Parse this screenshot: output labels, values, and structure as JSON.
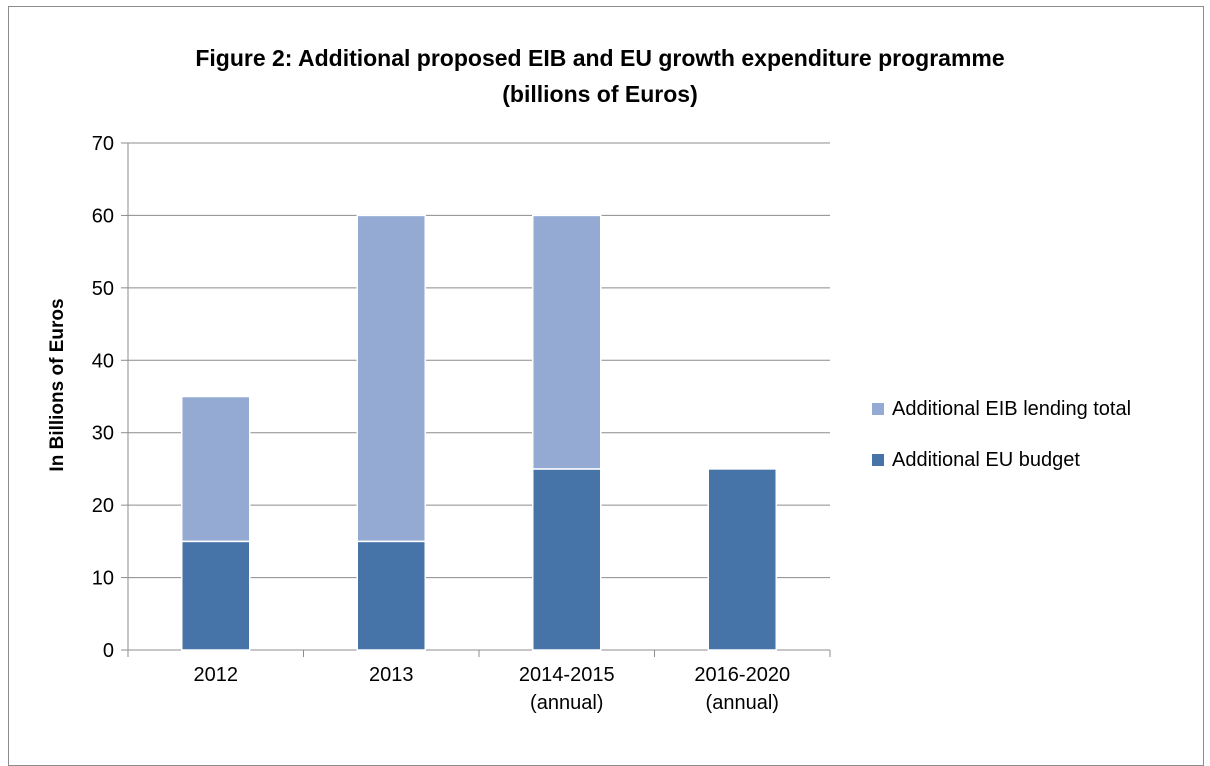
{
  "title": {
    "line1": "Figure 2: Additional proposed EIB and EU growth expenditure programme",
    "line2": "(billions of Euros)"
  },
  "colors": {
    "eu_budget": "#4673a8",
    "eib_lending": "#94aad3",
    "grid": "#8c8c8c"
  },
  "chart_data": {
    "type": "bar",
    "stacked": true,
    "title": "Figure 2: Additional proposed EIB and EU growth expenditure programme (billions of Euros)",
    "xlabel": "",
    "ylabel": "In Billions of  Euros",
    "ylim": [
      0,
      70
    ],
    "yticks": [
      0,
      10,
      20,
      30,
      40,
      50,
      60,
      70
    ],
    "grid": true,
    "legend_position": "right",
    "categories": [
      [
        "2012"
      ],
      [
        "2013"
      ],
      [
        "2014-2015",
        "(annual)"
      ],
      [
        "2016-2020",
        "(annual)"
      ]
    ],
    "series": [
      {
        "name": "Additional EU budget",
        "color": "#4673a8",
        "values": [
          15,
          15,
          25,
          25
        ]
      },
      {
        "name": "Additional EIB lending total",
        "color": "#94aad3",
        "values": [
          20,
          45,
          35,
          0
        ]
      }
    ]
  }
}
